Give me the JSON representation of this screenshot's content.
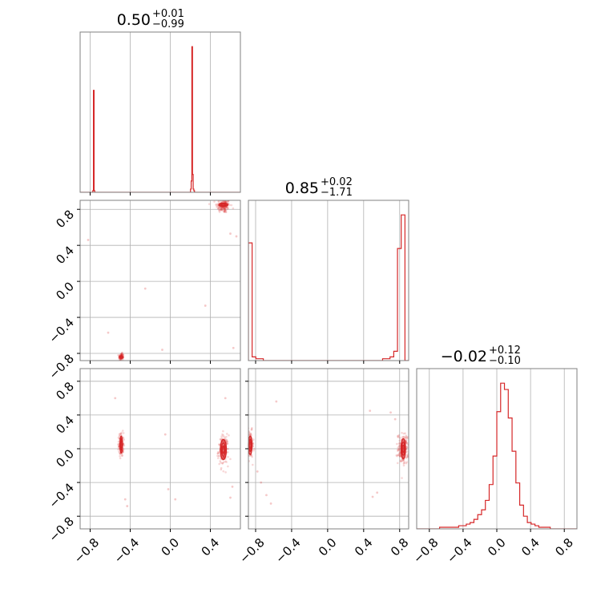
{
  "chart_data": {
    "type": "corner",
    "color": "#d62728",
    "grid": true,
    "parameters": 3,
    "tick_labels": {
      "x": [
        "−0.8",
        "−0.4",
        "0.0",
        "0.4",
        "0.8"
      ],
      "y": [
        "−0.8",
        "−0.4",
        "0.0",
        "0.4",
        "0.8"
      ]
    },
    "tick_values": [
      -0.8,
      -0.4,
      0.0,
      0.4,
      0.8
    ],
    "axis_ranges": [
      [
        -0.9,
        0.7
      ],
      [
        -0.88,
        0.9
      ],
      [
        -0.95,
        0.95
      ]
    ],
    "titles": [
      {
        "value": "0.50",
        "plus": "+0.01",
        "minus": "−0.99"
      },
      {
        "value": "0.85",
        "plus": "+0.02",
        "minus": "−1.71"
      },
      {
        "value": "−0.02",
        "plus": "+0.12",
        "minus": "−0.10"
      }
    ],
    "histograms": [
      {
        "param": 0,
        "bins": [
          -0.9,
          0.7
        ],
        "counts": [
          0,
          0,
          0,
          0,
          0,
          0,
          0,
          0,
          0,
          0,
          0,
          0,
          0,
          0,
          0,
          0,
          0,
          0,
          0,
          1,
          63,
          1,
          0,
          0,
          0,
          0,
          0,
          0,
          0,
          0,
          0,
          0,
          0,
          0,
          0,
          0,
          0,
          0,
          0,
          0,
          0,
          0,
          0,
          0,
          0,
          0,
          0,
          0,
          0,
          0,
          0,
          0,
          0,
          0,
          0,
          0,
          0,
          0,
          0,
          0,
          0,
          0,
          0,
          0,
          0,
          0,
          0,
          0,
          0,
          0,
          0,
          0,
          0,
          0,
          0,
          0,
          0,
          0,
          0,
          0,
          0,
          0,
          0,
          0,
          0,
          0,
          0,
          0,
          0,
          0,
          0,
          0,
          0,
          0,
          0,
          0,
          0,
          0,
          0,
          0,
          0,
          0,
          0,
          0,
          0,
          0,
          0,
          0,
          0,
          0,
          0,
          0,
          0,
          0,
          0,
          0,
          0,
          0,
          0,
          0,
          0,
          0,
          0,
          0,
          0,
          0,
          0,
          0,
          0,
          0,
          0,
          0,
          0,
          0,
          0,
          0,
          0,
          0,
          0,
          0,
          0,
          0,
          0,
          0,
          0,
          0,
          0,
          0,
          0,
          0,
          0,
          0,
          0,
          0,
          0,
          0,
          0,
          0,
          0,
          0,
          0,
          0,
          0,
          0,
          0,
          0,
          2,
          7,
          90,
          11,
          2,
          1,
          0,
          0,
          0,
          0,
          0,
          0,
          0,
          0,
          0,
          0,
          0,
          0,
          0,
          0,
          0,
          0,
          0,
          0,
          0,
          0,
          0,
          0,
          0,
          0,
          0,
          0,
          0,
          0,
          0,
          0,
          0,
          0,
          0,
          0,
          0,
          0,
          0,
          0,
          0,
          0,
          0,
          0,
          0,
          0,
          0,
          0,
          0,
          0,
          0,
          0,
          0,
          0,
          0,
          0,
          0,
          0,
          0,
          0,
          0,
          0,
          0,
          0,
          0,
          0,
          0,
          0,
          0,
          0,
          0
        ]
      },
      {
        "param": 1,
        "bins": [
          -0.88,
          0.9
        ],
        "counts": [
          63,
          2,
          1,
          1,
          0,
          0,
          0,
          0,
          0,
          0,
          0,
          0,
          0,
          0,
          0,
          0,
          0,
          0,
          0,
          0,
          0,
          0,
          0,
          0,
          0,
          0,
          0,
          0,
          0,
          0,
          0,
          0,
          0,
          0,
          0,
          0,
          1,
          1,
          2,
          5,
          60,
          78,
          0
        ]
      },
      {
        "param": 2,
        "bins": [
          -0.95,
          0.95
        ],
        "counts": [
          0,
          0,
          0,
          0,
          0,
          0,
          1,
          1,
          1,
          1,
          1,
          2,
          2,
          3,
          4,
          6,
          9,
          12,
          18,
          28,
          46,
          74,
          92,
          88,
          70,
          49,
          29,
          15,
          8,
          4,
          3,
          2,
          1,
          1,
          1,
          0,
          0,
          0,
          0,
          0,
          0,
          0
        ]
      }
    ],
    "scatter_panels": [
      {
        "x_param": 0,
        "y_param": 1,
        "clusters": [
          {
            "center": [
              0.53,
              0.84
            ],
            "spread": [
              0.035,
              0.04
            ],
            "count": 150
          },
          {
            "center": [
              -0.49,
              -0.84
            ],
            "spread": [
              0.012,
              0.02
            ],
            "count": 90
          }
        ],
        "outliers": [
          [
            -0.82,
            0.46
          ],
          [
            -0.25,
            -0.08
          ],
          [
            0.35,
            -0.27
          ],
          [
            0.6,
            0.53
          ],
          [
            0.66,
            0.5
          ],
          [
            0.63,
            -0.74
          ],
          [
            -0.08,
            -0.76
          ],
          [
            -0.62,
            -0.57
          ]
        ]
      },
      {
        "x_param": 0,
        "y_param": 2,
        "clusters": [
          {
            "center": [
              -0.49,
              0.05
            ],
            "spread": [
              0.012,
              0.07
            ],
            "count": 120
          },
          {
            "center": [
              0.53,
              -0.02
            ],
            "spread": [
              0.025,
              0.09
            ],
            "count": 160
          }
        ],
        "outliers": [
          [
            -0.55,
            0.6
          ],
          [
            -0.45,
            -0.6
          ],
          [
            -0.43,
            -0.68
          ],
          [
            -0.05,
            0.17
          ],
          [
            0.05,
            -0.6
          ],
          [
            -0.02,
            -0.48
          ],
          [
            0.55,
            0.6
          ],
          [
            0.62,
            -0.45
          ],
          [
            0.6,
            -0.58
          ]
        ]
      },
      {
        "x_param": 1,
        "y_param": 2,
        "clusters": [
          {
            "center": [
              0.84,
              0.0
            ],
            "spread": [
              0.03,
              0.09
            ],
            "count": 160
          },
          {
            "center": [
              -0.86,
              0.05
            ],
            "spread": [
              0.02,
              0.08
            ],
            "count": 110
          }
        ],
        "outliers": [
          [
            -0.57,
            0.56
          ],
          [
            0.47,
            0.45
          ],
          [
            0.5,
            -0.57
          ],
          [
            0.55,
            -0.52
          ],
          [
            -0.74,
            -0.4
          ],
          [
            -0.68,
            -0.55
          ],
          [
            -0.63,
            -0.65
          ],
          [
            -0.78,
            -0.27
          ],
          [
            0.7,
            0.43
          ],
          [
            0.75,
            0.35
          ]
        ]
      }
    ],
    "contours": [
      {
        "panel": "0-1",
        "center": [
          0.53,
          0.85
        ],
        "rx": 0.045,
        "ry": 0.02
      },
      {
        "panel": "0-1",
        "center": [
          -0.49,
          -0.84
        ],
        "rx": 0.016,
        "ry": 0.015
      },
      {
        "panel": "0-2",
        "center": [
          -0.49,
          0.05
        ],
        "rx": 0.012,
        "ry": 0.1
      },
      {
        "panel": "0-2",
        "center": [
          0.53,
          -0.01
        ],
        "rx": 0.03,
        "ry": 0.12
      },
      {
        "panel": "1-2",
        "center": [
          0.84,
          0.0
        ],
        "rx": 0.025,
        "ry": 0.12
      },
      {
        "panel": "1-2",
        "center": [
          -0.86,
          0.04
        ],
        "rx": 0.02,
        "ry": 0.11
      }
    ]
  }
}
